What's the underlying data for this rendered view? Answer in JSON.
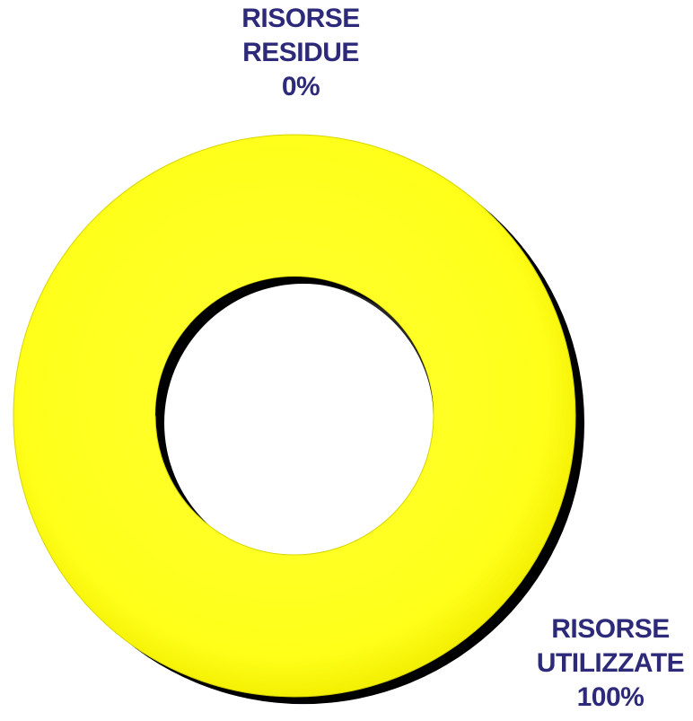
{
  "chart_data": {
    "type": "pie",
    "variant": "donut",
    "slices": [
      {
        "label_lines": [
          "RISORSE",
          "RESIDUE"
        ],
        "value": 0,
        "value_label": "0%",
        "color": "#ffff1a"
      },
      {
        "label_lines": [
          "RISORSE",
          "UTILIZZATE"
        ],
        "value": 100,
        "value_label": "100%",
        "color": "#ffff1a"
      }
    ],
    "legend": "none",
    "effect": "3d-shadow"
  },
  "colors": {
    "ring_fill": "#ffff1a",
    "ring_shadow": "#000000",
    "label_text": "#2e2a7a",
    "background": "#ffffff"
  }
}
